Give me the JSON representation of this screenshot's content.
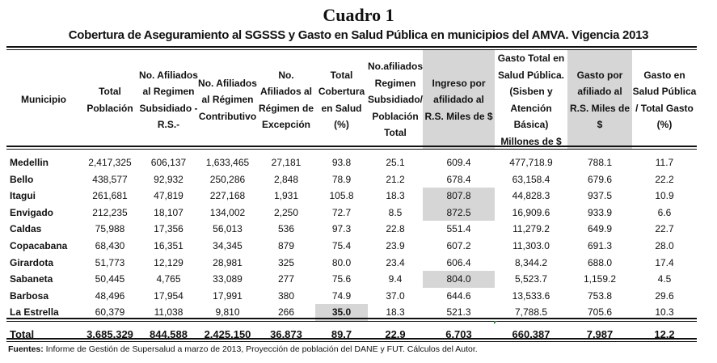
{
  "title": "Cuadro  1",
  "subtitle": "Cobertura de Aseguramiento al SGSSS y Gasto en  Salud Pública en  municipios del AMVA. Vigencia 2013",
  "columns": [
    {
      "key": "municipio",
      "label": "Municipio"
    },
    {
      "key": "poblacion",
      "label": "Total Población"
    },
    {
      "key": "subsidiado",
      "label": "No. Afiliados al Regimen Subsidiado -R.S.-"
    },
    {
      "key": "contributivo",
      "label": "No. Afiliados al Régimen Contributivo"
    },
    {
      "key": "excepcion",
      "label": "No. Afiliados al Régimen de Excepción"
    },
    {
      "key": "cobertura",
      "label": "Total Cobertura en Salud (%)"
    },
    {
      "key": "rs_poblacion",
      "label": "No.afiliados Regimen Subsidiado/ Población Total"
    },
    {
      "key": "ingreso",
      "label": "Ingreso por afilidado al R.S. Miles de $"
    },
    {
      "key": "gasto_total",
      "label": "Gasto Total en Salud Pública.(Sisben y Atención Básica) Millones de $"
    },
    {
      "key": "gasto_afiliado",
      "label": "Gasto por afiliado al R.S. Miles de $"
    },
    {
      "key": "gasto_pct",
      "label": "Gasto en Salud Pública / Total Gasto (%)"
    }
  ],
  "highlight_color": "#d6d6d6",
  "rows": [
    [
      "Medellin",
      "2,417,325",
      "606,137",
      "1,633,465",
      "27,181",
      "93.8",
      "25.1",
      "609.4",
      "477,718.9",
      "788.1",
      "11.7"
    ],
    [
      "Bello",
      "438,577",
      "92,932",
      "250,286",
      "2,848",
      "78.9",
      "21.2",
      "678.4",
      "63,158.4",
      "679.6",
      "22.2"
    ],
    [
      "Itagui",
      "261,681",
      "47,819",
      "227,168",
      "1,931",
      "105.8",
      "18.3",
      "807.8",
      "44,828.3",
      "937.5",
      "10.9"
    ],
    [
      "Envigado",
      "212,235",
      "18,107",
      "134,002",
      "2,250",
      "72.7",
      "8.5",
      "872.5",
      "16,909.6",
      "933.9",
      "6.6"
    ],
    [
      "Caldas",
      "75,988",
      "17,356",
      "56,013",
      "536",
      "97.3",
      "22.8",
      "551.4",
      "11,279.2",
      "649.9",
      "22.7"
    ],
    [
      "Copacabana",
      "68,430",
      "16,351",
      "34,345",
      "879",
      "75.4",
      "23.9",
      "607.2",
      "11,303.0",
      "691.3",
      "28.0"
    ],
    [
      "Girardota",
      "51,773",
      "12,129",
      "28,981",
      "325",
      "80.0",
      "23.4",
      "606.4",
      "8,344.2",
      "688.0",
      "17.4"
    ],
    [
      "Sabaneta",
      "50,445",
      "4,765",
      "33,089",
      "277",
      "75.6",
      "9.4",
      "804.0",
      "5,523.7",
      "1,159.2",
      "4.5"
    ],
    [
      "Barbosa",
      "48,496",
      "17,954",
      "17,991",
      "380",
      "74.9",
      "37.0",
      "644.6",
      "13,533.6",
      "753.8",
      "29.6"
    ],
    [
      "La Estrella",
      "60,379",
      "11,038",
      "9,810",
      "266",
      "35.0",
      "18.3",
      "521.3",
      "7,788.5",
      "705.6",
      "10.3"
    ]
  ],
  "total": [
    "Total",
    "3,685,329",
    "844,588",
    "2,425,150",
    "36,873",
    "89.7",
    "22.9",
    "6,703",
    "660,387",
    "7,987",
    "12.2"
  ],
  "footer": {
    "label": "Fuentes:",
    "text": " Informe de Gestión de Supersalud a marzo de 2013,  Proyección de población del DANE  y  FUT. Cálculos del Autor."
  }
}
